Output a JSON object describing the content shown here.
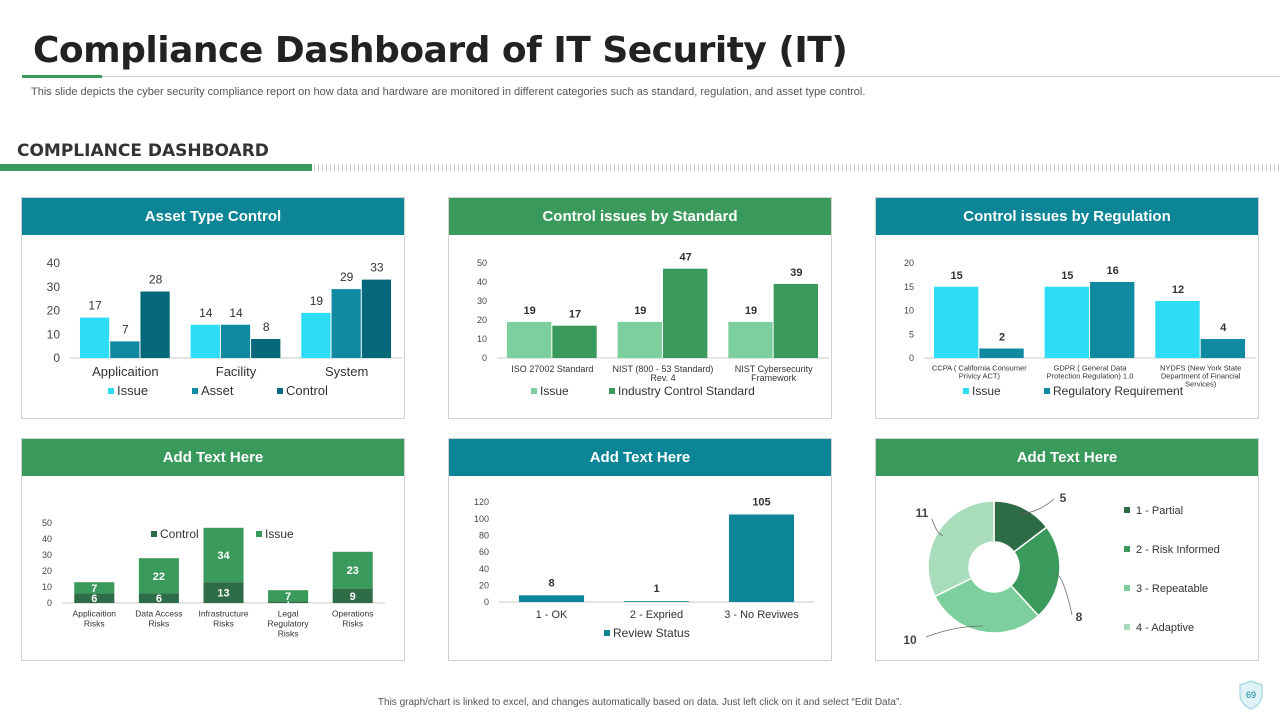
{
  "header": {
    "title": "Compliance Dashboard of IT Security (IT)",
    "subtitle": "This slide depicts the cyber security compliance report on how data and hardware are monitored in different categories such as standard, regulation, and asset type control.",
    "section_title": "COMPLIANCE DASHBOARD"
  },
  "panels": {
    "p1_title": "Asset Type Control",
    "p2_title": "Control issues by Standard",
    "p3_title": "Control issues by Regulation",
    "p4_title": "Add Text Here",
    "p5_title": "Add Text Here",
    "p6_title": "Add Text Here"
  },
  "footer": {
    "note": "This graph/chart is linked to excel, and changes automatically based on data. Just left click on it and select “Edit Data”.",
    "page_number": "69"
  },
  "colors": {
    "teal": "#0c8597",
    "green": "#3a9a5c",
    "cyan": "#2ddcf5",
    "mid_teal": "#0f8aa0",
    "dark_teal": "#05677a",
    "light_green": "#7ecf9e",
    "mid_green": "#3a9a5c",
    "dark_green": "#2e6b47"
  },
  "chart_data": [
    {
      "type": "bar",
      "title": "Asset Type Control",
      "categories": [
        "Applicaition",
        "Facility",
        "System"
      ],
      "series": [
        {
          "name": "Issue",
          "values": [
            17,
            14,
            19
          ],
          "color": "#2ddcf5"
        },
        {
          "name": "Asset",
          "values": [
            7,
            14,
            29
          ],
          "color": "#0f8aa0"
        },
        {
          "name": "Control",
          "values": [
            28,
            8,
            33
          ],
          "color": "#05677a"
        }
      ],
      "ylim": [
        0,
        40
      ],
      "yticks": [
        0,
        10,
        20,
        30,
        40
      ]
    },
    {
      "type": "bar",
      "title": "Control issues by Standard",
      "categories": [
        [
          "ISO 27002 Standard"
        ],
        [
          "NIST (800 - 53 Standard)",
          "Rev. 4"
        ],
        [
          "NIST Cybersecurity",
          "Framework"
        ]
      ],
      "series": [
        {
          "name": "Issue",
          "values": [
            19,
            19,
            19
          ],
          "color": "#7ecf9e"
        },
        {
          "name": "Industry Control Standard",
          "values": [
            17,
            47,
            39
          ],
          "color": "#3a9a5c"
        }
      ],
      "ylim": [
        0,
        50
      ],
      "yticks": [
        0,
        10,
        20,
        30,
        40,
        50
      ]
    },
    {
      "type": "bar",
      "title": "Control issues by Regulation",
      "categories": [
        [
          "CCPA ( California Consumer",
          "Privicy ACT)"
        ],
        [
          "GDPR ( General Data",
          "Protection Regulation) 1.0"
        ],
        [
          "NYDFS (New York State",
          "Department of Financial",
          "Services)"
        ]
      ],
      "series": [
        {
          "name": "Issue",
          "values": [
            15,
            15,
            12
          ],
          "color": "#2ddcf5"
        },
        {
          "name": "Regulatory Requirement",
          "values": [
            2,
            16,
            4
          ],
          "color": "#0f8aa0"
        }
      ],
      "ylim": [
        0,
        20
      ],
      "yticks": [
        0,
        5,
        10,
        15,
        20
      ]
    },
    {
      "type": "bar",
      "stacked": true,
      "title": "Add Text Here",
      "categories": [
        [
          "Applicaition",
          "Risks"
        ],
        [
          "Data Access",
          "Risks"
        ],
        [
          "Infrastructure",
          "Risks"
        ],
        [
          "Legal",
          "Regulatory",
          "Risks"
        ],
        [
          "Operations",
          "Risks"
        ]
      ],
      "series": [
        {
          "name": "Control",
          "values": [
            6,
            6,
            13,
            1,
            9
          ],
          "color": "#2e6b47"
        },
        {
          "name": "Issue",
          "values": [
            7,
            22,
            34,
            7,
            23
          ],
          "color": "#3a9a5c"
        }
      ],
      "ylim": [
        0,
        50
      ],
      "yticks": [
        0,
        10,
        20,
        30,
        40,
        50
      ]
    },
    {
      "type": "bar",
      "title": "Add Text Here",
      "categories": [
        "1 - OK",
        "2 - Expried",
        "3 - No Reviwes"
      ],
      "series": [
        {
          "name": "Review Status",
          "values": [
            8,
            1,
            105
          ],
          "color": "#0c8597"
        }
      ],
      "ylim": [
        0,
        120
      ],
      "yticks": [
        0,
        20,
        40,
        60,
        80,
        100,
        120
      ]
    },
    {
      "type": "pie",
      "donut": true,
      "title": "Add Text Here",
      "labels": [
        "1 - Partial",
        "2 - Risk Informed",
        "3 - Repeatable",
        "4 - Adaptive"
      ],
      "values": [
        5,
        8,
        10,
        11
      ],
      "colors": [
        "#2e6b47",
        "#3a9a5c",
        "#7ecf9e",
        "#a9dcbb"
      ]
    }
  ]
}
